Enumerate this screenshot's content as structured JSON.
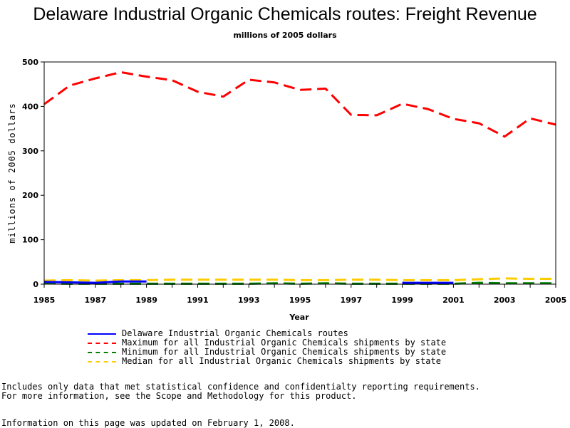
{
  "chart_data": {
    "type": "line",
    "title": "Delaware Industrial Organic Chemicals routes: Freight Revenue",
    "subtitle": "millions of 2005 dollars",
    "xlabel": "Year",
    "ylabel": "millions of 2005 dollars",
    "xlim": [
      1985,
      2005
    ],
    "ylim": [
      0,
      500
    ],
    "x_ticks": [
      "1985",
      "1987",
      "1989",
      "1991",
      "1993",
      "1995",
      "1997",
      "1999",
      "2001",
      "2003",
      "2005"
    ],
    "y_ticks": [
      "0",
      "100",
      "200",
      "300",
      "400",
      "500"
    ],
    "grid": false,
    "legend_position": "bottom",
    "series": [
      {
        "name": "Delaware Industrial Organic Chemicals routes",
        "color": "#0000ff",
        "style": "solid",
        "x": [
          1985,
          1986,
          1987,
          1988,
          1989,
          1999,
          2000,
          2001
        ],
        "y": [
          5,
          4,
          3,
          6,
          6,
          3,
          3,
          3
        ],
        "segments": [
          [
            1985,
            1989
          ],
          [
            1999,
            2001
          ]
        ]
      },
      {
        "name": "Maximum for all Industrial Organic Chemicals shipments by state",
        "color": "#ff0000",
        "style": "dashed",
        "x": [
          1985,
          1986,
          1987,
          1988,
          1989,
          1990,
          1991,
          1992,
          1993,
          1994,
          1995,
          1996,
          1997,
          1998,
          1999,
          2000,
          2001,
          2002,
          2003,
          2004,
          2005
        ],
        "y": [
          405,
          447,
          463,
          477,
          467,
          459,
          433,
          422,
          460,
          454,
          437,
          440,
          381,
          380,
          406,
          394,
          372,
          362,
          332,
          373,
          359
        ]
      },
      {
        "name": "Minimum for all Industrial Organic Chemicals shipments by state",
        "color": "#008000",
        "style": "dashed",
        "x": [
          1985,
          1986,
          1987,
          1988,
          1989,
          1990,
          1991,
          1992,
          1993,
          1994,
          1995,
          1996,
          1997,
          1998,
          1999,
          2000,
          2001,
          2002,
          2003,
          2004,
          2005
        ],
        "y": [
          2,
          1,
          1,
          1,
          1,
          1,
          1,
          1,
          1,
          2,
          1,
          2,
          1,
          1,
          1,
          1,
          1,
          3,
          2,
          2,
          2
        ]
      },
      {
        "name": "Median for all Industrial Organic Chemicals shipments by state",
        "color": "#ffcc00",
        "style": "dashed",
        "x": [
          1985,
          1986,
          1987,
          1988,
          1989,
          1990,
          1991,
          1992,
          1993,
          1994,
          1995,
          1996,
          1997,
          1998,
          1999,
          2000,
          2001,
          2002,
          2003,
          2004,
          2005
        ],
        "y": [
          8,
          9,
          8,
          9,
          9,
          10,
          10,
          10,
          10,
          10,
          9,
          9,
          10,
          10,
          9,
          9,
          9,
          11,
          13,
          12,
          12
        ]
      }
    ]
  },
  "footnotes": {
    "line1": "Includes only data that met statistical confidence and confidentialty reporting requirements.",
    "line2": "For more information, see the Scope and Methodology for this product.",
    "line3": "Information on this page was updated on February 1, 2008."
  }
}
